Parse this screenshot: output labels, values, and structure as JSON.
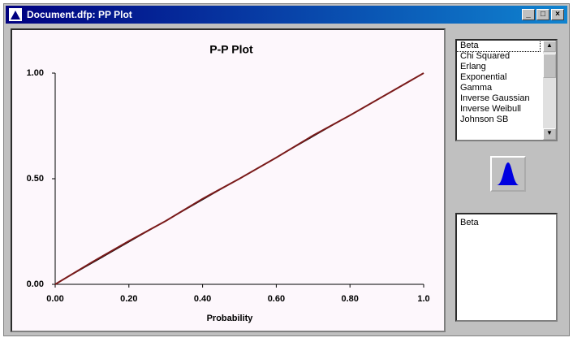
{
  "window": {
    "title": "Document.dfp: PP Plot"
  },
  "chart_data": {
    "type": "line",
    "title": "P-P Plot",
    "x_label": "Probability",
    "x": [
      0,
      0.1,
      0.2,
      0.3,
      0.4,
      0.5,
      0.6,
      0.7,
      0.8,
      0.9,
      1
    ],
    "series": [
      {
        "color": "#000000",
        "values": [
          0,
          0.1,
          0.2,
          0.3,
          0.4,
          0.5,
          0.6,
          0.7,
          0.8,
          0.9,
          1
        ]
      },
      {
        "color": "#7a1a1a",
        "values": [
          0,
          0.105,
          0.205,
          0.3,
          0.405,
          0.5,
          0.6,
          0.705,
          0.8,
          0.9,
          1
        ]
      }
    ],
    "xlim": [
      0,
      1
    ],
    "xticks": [
      {
        "value": 0,
        "label": "0.00"
      },
      {
        "value": 0.2,
        "label": "0.20"
      },
      {
        "value": 0.4,
        "label": "0.40"
      },
      {
        "value": 0.6,
        "label": "0.60"
      },
      {
        "value": 0.8,
        "label": "0.80"
      },
      {
        "value": 1,
        "label": "1.0"
      }
    ],
    "ylim": [
      0,
      1
    ],
    "yticks": [
      {
        "value": 0,
        "label": "0.00"
      },
      {
        "value": 0.5,
        "label": "0.50"
      },
      {
        "value": 1,
        "label": "1.00"
      }
    ]
  },
  "distribution_list": {
    "items": [
      "Beta",
      "Chi Squared",
      "Erlang",
      "Exponential",
      "Gamma",
      "Inverse Gaussian",
      "Inverse Weibull",
      "Johnson SB"
    ]
  },
  "selected_box": {
    "text": "Beta"
  }
}
